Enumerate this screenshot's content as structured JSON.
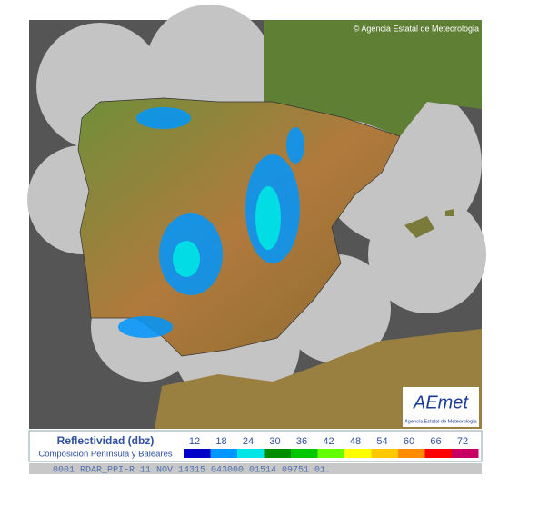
{
  "credit": "© Agencia Estatal de Meteorologia",
  "logo": {
    "brand": "AEmet",
    "caption": "Agencia Estatal de Meteorología"
  },
  "legend": {
    "title": "Reflectividad (dbz)",
    "subtitle": "Composición Península y Baleares",
    "levels": [
      "12",
      "18",
      "24",
      "30",
      "36",
      "42",
      "48",
      "54",
      "60",
      "66",
      "72"
    ],
    "colors": [
      "#0000c8",
      "#0096ff",
      "#00e6e6",
      "#008c00",
      "#00c800",
      "#64ff00",
      "#ffff00",
      "#ffc800",
      "#ff8c00",
      "#ff0000",
      "#c80064"
    ]
  },
  "status_bar": "0001 RDAR_PPI-R   11 NOV 14315 043000 01514 09751 01."
}
